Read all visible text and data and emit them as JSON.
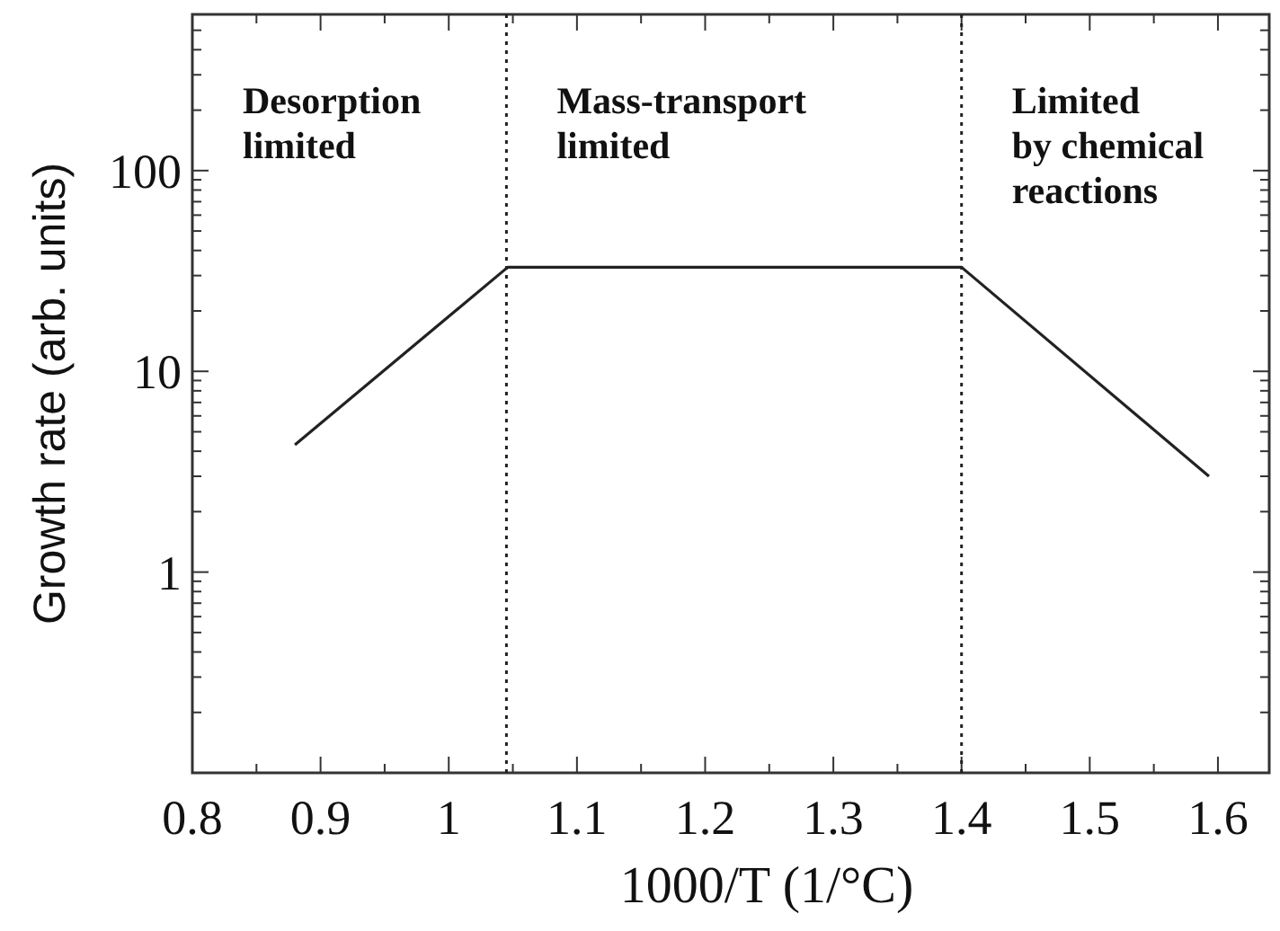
{
  "chart_data": {
    "type": "line",
    "xlabel": "1000/T (1/°C)",
    "ylabel": "Growth rate (arb. units)",
    "x": [
      0.88,
      1.046,
      1.4,
      1.593
    ],
    "series": [
      {
        "color": "#222222",
        "values": [
          4.3,
          33,
          33,
          3.0
        ]
      }
    ],
    "log": "y",
    "xlim": [
      0.8,
      1.64
    ],
    "ylim": [
      0.1,
      600
    ],
    "xticks": [
      0.8,
      {
        "value": 0.85,
        "label": null
      },
      0.9,
      {
        "value": 0.95,
        "label": null
      },
      1,
      {
        "value": 1.05,
        "label": null
      },
      1.1,
      {
        "value": 1.15,
        "label": null
      },
      1.2,
      {
        "value": 1.25,
        "label": null
      },
      1.3,
      {
        "value": 1.35,
        "label": null
      },
      1.4,
      {
        "value": 1.45,
        "label": null
      },
      1.5,
      {
        "value": 1.55,
        "label": null
      },
      1.6
    ],
    "yticks": [
      {
        "value": 0.2,
        "label": null
      },
      {
        "value": 0.3,
        "label": null
      },
      {
        "value": 0.4,
        "label": null
      },
      {
        "value": 0.5,
        "label": null
      },
      {
        "value": 0.6,
        "label": null
      },
      {
        "value": 0.7,
        "label": null
      },
      {
        "value": 0.8,
        "label": null
      },
      {
        "value": 0.9,
        "label": null
      },
      1,
      {
        "value": 2,
        "label": null
      },
      {
        "value": 3,
        "label": null
      },
      {
        "value": 4,
        "label": null
      },
      {
        "value": 5,
        "label": null
      },
      {
        "value": 6,
        "label": null
      },
      {
        "value": 7,
        "label": null
      },
      {
        "value": 8,
        "label": null
      },
      {
        "value": 9,
        "label": null
      },
      10,
      {
        "value": 20,
        "label": null
      },
      {
        "value": 30,
        "label": null
      },
      {
        "value": 40,
        "label": null
      },
      {
        "value": 50,
        "label": null
      },
      {
        "value": 60,
        "label": null
      },
      {
        "value": 70,
        "label": null
      },
      {
        "value": 80,
        "label": null
      },
      {
        "value": 90,
        "label": null
      },
      100,
      {
        "value": 200,
        "label": null
      },
      {
        "value": 300,
        "label": null
      },
      {
        "value": 400,
        "label": null
      },
      {
        "value": 500,
        "label": null
      }
    ],
    "ref_lines": [
      {
        "axis": "x",
        "value": 1.045,
        "line_style": "dotted",
        "color": "#222222"
      },
      {
        "axis": "x",
        "value": 1.4,
        "line_style": "dotted",
        "color": "#222222"
      }
    ],
    "annotations": [
      "Desorption\nlimited",
      "Mass-transport\nlimited",
      "Limited\nby chemical\nreactions"
    ],
    "line_style": "solid",
    "marker": "none"
  }
}
